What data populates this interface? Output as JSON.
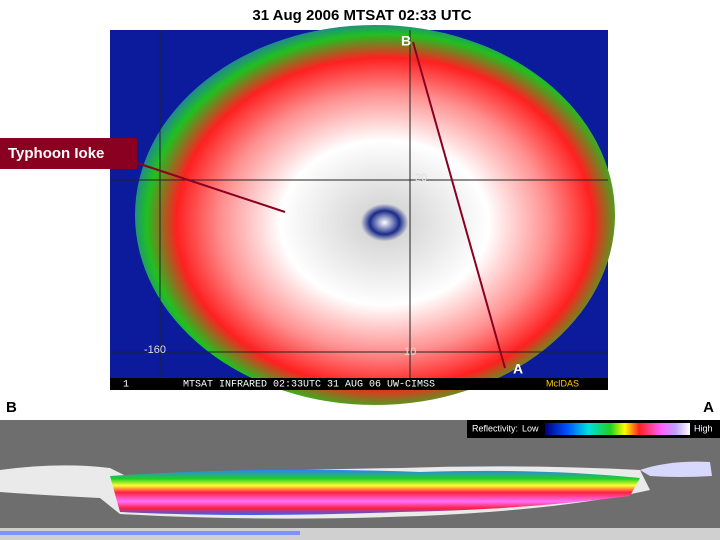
{
  "header": {
    "title": "31 Aug 2006  MTSAT  02:33 UTC"
  },
  "satellite_image": {
    "callout": "Typhoon Ioke",
    "point_b": "B",
    "point_a": "A",
    "longitude_label": "-160",
    "latitude_labels": [
      "20",
      "10"
    ],
    "frame_number": "1",
    "caption": "MTSAT INFRARED 02:33UTC 31 AUG 06 UW-CIMSS",
    "software": "McIDAS"
  },
  "cross_section": {
    "left_end": "B",
    "right_end": "A",
    "legend": {
      "title": "Reflectivity:",
      "low": "Low",
      "high": "High"
    }
  }
}
